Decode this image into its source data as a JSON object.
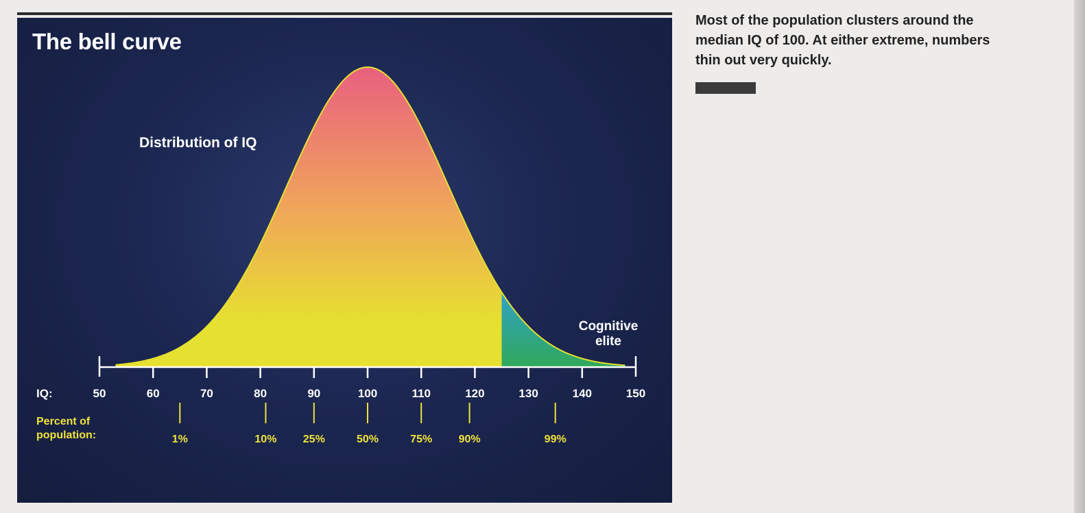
{
  "caption": {
    "text": "Most of the population clusters around the median IQ of 100. At either extreme, numbers thin out very quickly."
  },
  "colors": {
    "panel_bg": "#1c2752",
    "curve_top": "#e8607f",
    "curve_mid": "#f0a25c",
    "curve_base": "#e6e030",
    "elite_top": "#2fa3c6",
    "elite_base": "#31a85a",
    "percent_labels": "#f1e33a",
    "axis": "#ffffff",
    "caption_bar": "#3a3b3d"
  },
  "chart_data": {
    "type": "area",
    "title": "The bell curve",
    "curve_label": "Distribution of IQ",
    "highlight_label": [
      "Cognitive",
      "elite"
    ],
    "highlight_range": [
      125,
      150
    ],
    "xlabel": "IQ:",
    "xlim": [
      50,
      150
    ],
    "distribution": {
      "mean": 100,
      "sd": 15
    },
    "x_ticks": [
      50,
      60,
      70,
      80,
      90,
      100,
      110,
      120,
      130,
      140,
      150
    ],
    "percentile_label": [
      "Percent of",
      "population:"
    ],
    "percentiles": [
      {
        "label": "1%",
        "iq": 65
      },
      {
        "label": "10%",
        "iq": 81
      },
      {
        "label": "25%",
        "iq": 90
      },
      {
        "label": "50%",
        "iq": 100
      },
      {
        "label": "75%",
        "iq": 110
      },
      {
        "label": "90%",
        "iq": 119
      },
      {
        "label": "99%",
        "iq": 135
      }
    ]
  }
}
